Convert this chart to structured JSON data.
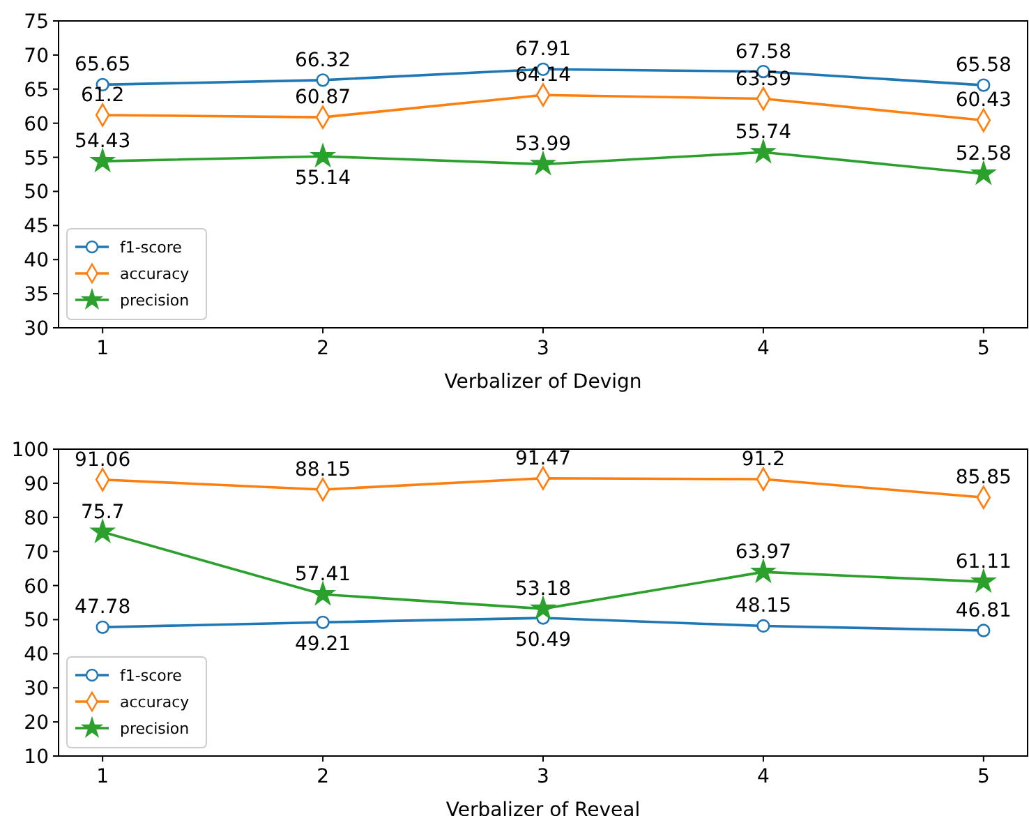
{
  "chart_data": [
    {
      "type": "line",
      "xlabel": "Verbalizer of Devign",
      "x": [
        1,
        2,
        3,
        4,
        5
      ],
      "xlim": [
        0.8,
        5.2
      ],
      "xticks": [
        1,
        2,
        3,
        4,
        5
      ],
      "ylim": [
        30,
        75
      ],
      "yticks": [
        30,
        35,
        40,
        45,
        50,
        55,
        60,
        65,
        70,
        75
      ],
      "legend": "bottom left",
      "data_labels": true,
      "series": [
        {
          "name": "f1-score",
          "color": "#1f77b4",
          "marker": "circle",
          "values": [
            65.65,
            66.32,
            67.91,
            67.58,
            65.58
          ]
        },
        {
          "name": "accuracy",
          "color": "#ff7f0e",
          "marker": "diamond",
          "values": [
            61.2,
            60.87,
            64.14,
            63.59,
            60.43
          ]
        },
        {
          "name": "precision",
          "color": "#2ca02c",
          "marker": "star",
          "values": [
            54.43,
            55.14,
            53.99,
            55.74,
            52.58
          ]
        }
      ]
    },
    {
      "type": "line",
      "xlabel": "Verbalizer of Reveal",
      "x": [
        1,
        2,
        3,
        4,
        5
      ],
      "xlim": [
        0.8,
        5.2
      ],
      "xticks": [
        1,
        2,
        3,
        4,
        5
      ],
      "ylim": [
        10,
        100
      ],
      "yticks": [
        10,
        20,
        30,
        40,
        50,
        60,
        70,
        80,
        90,
        100
      ],
      "legend": "bottom left",
      "data_labels": true,
      "series": [
        {
          "name": "f1-score",
          "color": "#1f77b4",
          "marker": "circle",
          "values": [
            47.78,
            49.21,
            50.49,
            48.15,
            46.81
          ]
        },
        {
          "name": "accuracy",
          "color": "#ff7f0e",
          "marker": "diamond",
          "values": [
            91.06,
            88.15,
            91.47,
            91.2,
            85.85
          ]
        },
        {
          "name": "precision",
          "color": "#2ca02c",
          "marker": "star",
          "values": [
            75.7,
            57.41,
            53.18,
            63.97,
            61.11
          ]
        }
      ]
    }
  ]
}
